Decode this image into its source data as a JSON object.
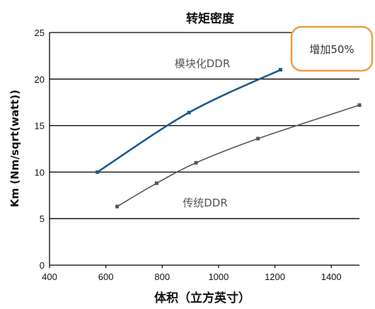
{
  "chart_data": {
    "type": "line",
    "title": "转矩密度",
    "xlabel": "体积（立方英寸）",
    "ylabel": "Km (Nm/sqrt(watt))",
    "xlim": [
      400,
      1500
    ],
    "ylim": [
      0,
      25
    ],
    "xticks": [
      400,
      600,
      800,
      1000,
      1200,
      1400
    ],
    "yticks": [
      0,
      5,
      10,
      15,
      20,
      25
    ],
    "grid": "horizontal",
    "series": [
      {
        "name": "模块化DDR",
        "color": "#1c5a8c",
        "points": [
          [
            570,
            10
          ],
          [
            895,
            16.4
          ],
          [
            1220,
            21
          ]
        ]
      },
      {
        "name": "传统DDR",
        "color": "#555555",
        "points": [
          [
            640,
            6.3
          ],
          [
            780,
            8.8
          ],
          [
            920,
            11
          ],
          [
            1140,
            13.6
          ],
          [
            1500,
            17.2
          ]
        ]
      }
    ],
    "annotations": [
      {
        "text": "增加50%",
        "style": "callout"
      }
    ]
  }
}
